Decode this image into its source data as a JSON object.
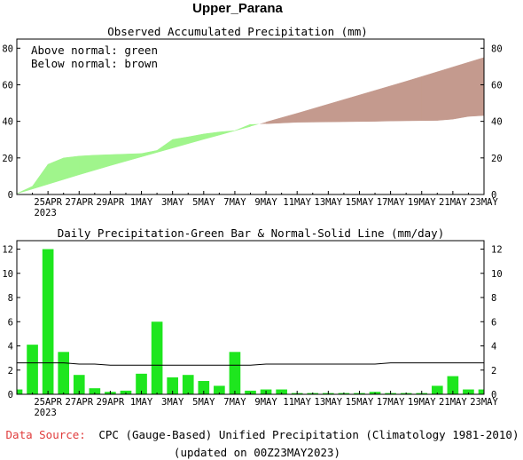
{
  "title": "Upper_Parana",
  "chart_data": [
    {
      "type": "area",
      "title": "Observed Accumulated Precipitation (mm)",
      "annotations": [
        "Above normal: green",
        "Below normal: brown"
      ],
      "legend_position": "top-left",
      "ylim": [
        0,
        85
      ],
      "yticks": [
        0,
        20,
        40,
        60,
        80
      ],
      "x_tick_labels": [
        "25APR",
        "27APR",
        "29APR",
        "1MAY",
        "3MAY",
        "5MAY",
        "7MAY",
        "9MAY",
        "11MAY",
        "13MAY",
        "15MAY",
        "17MAY",
        "19MAY",
        "21MAY",
        "23MAY"
      ],
      "x_year_label": "2023",
      "x_dates": [
        "23APR",
        "24APR",
        "25APR",
        "26APR",
        "27APR",
        "28APR",
        "29APR",
        "30APR",
        "1MAY",
        "2MAY",
        "3MAY",
        "4MAY",
        "5MAY",
        "6MAY",
        "7MAY",
        "8MAY",
        "9MAY",
        "10MAY",
        "11MAY",
        "12MAY",
        "13MAY",
        "14MAY",
        "15MAY",
        "16MAY",
        "17MAY",
        "18MAY",
        "19MAY",
        "20MAY",
        "21MAY",
        "22MAY",
        "23MAY"
      ],
      "series": [
        {
          "name": "observed",
          "values": [
            0.5,
            4.5,
            16.5,
            20,
            21,
            21.5,
            21.8,
            22.1,
            22.4,
            24.1,
            30.1,
            31.5,
            33.1,
            34.2,
            34.9,
            38.4,
            38.7,
            39.1,
            39.5,
            39.6,
            39.7,
            39.8,
            39.9,
            40,
            40.2,
            40.3,
            40.4,
            40.5,
            41.2,
            42.7,
            43.2
          ]
        },
        {
          "name": "normal",
          "values": [
            0.5,
            3,
            5.6,
            8.2,
            10.8,
            13.3,
            15.8,
            18.2,
            20.6,
            23,
            25.4,
            27.8,
            30.2,
            32.5,
            34.9,
            37.2,
            39.6,
            42,
            44.4,
            46.9,
            49.4,
            51.9,
            54.4,
            56.9,
            59.4,
            61.9,
            64.5,
            67.1,
            69.7,
            72.3,
            74.9
          ]
        }
      ],
      "colors": {
        "above": "#a0f58c",
        "below": "#c49a8e"
      }
    },
    {
      "type": "bar",
      "title": "Daily Precipitation-Green Bar & Normal-Solid Line (mm/day)",
      "ylim": [
        0,
        12.7
      ],
      "yticks": [
        0,
        2,
        4,
        6,
        8,
        10,
        12
      ],
      "x_tick_labels": [
        "25APR",
        "27APR",
        "29APR",
        "1MAY",
        "3MAY",
        "5MAY",
        "7MAY",
        "9MAY",
        "11MAY",
        "13MAY",
        "15MAY",
        "17MAY",
        "19MAY",
        "21MAY",
        "23MAY"
      ],
      "x_year_label": "2023",
      "categories": [
        "23APR",
        "24APR",
        "25APR",
        "26APR",
        "27APR",
        "28APR",
        "29APR",
        "30APR",
        "1MAY",
        "2MAY",
        "3MAY",
        "4MAY",
        "5MAY",
        "6MAY",
        "7MAY",
        "8MAY",
        "9MAY",
        "10MAY",
        "11MAY",
        "12MAY",
        "13MAY",
        "14MAY",
        "15MAY",
        "16MAY",
        "17MAY",
        "18MAY",
        "19MAY",
        "20MAY",
        "21MAY",
        "22MAY",
        "23MAY"
      ],
      "series": [
        {
          "name": "daily",
          "values": [
            0.4,
            4.1,
            12,
            3.5,
            1.6,
            0.5,
            0.2,
            0.3,
            1.7,
            6,
            1.4,
            1.6,
            1.1,
            0.7,
            3.5,
            0.3,
            0.4,
            0.4,
            0.1,
            0.1,
            0.1,
            0.1,
            0.1,
            0.2,
            0.1,
            0.1,
            0.1,
            0.7,
            1.5,
            0.4,
            0.4
          ]
        },
        {
          "name": "normal",
          "values": [
            2.6,
            2.6,
            2.6,
            2.6,
            2.5,
            2.5,
            2.4,
            2.4,
            2.4,
            2.4,
            2.4,
            2.4,
            2.4,
            2.4,
            2.4,
            2.4,
            2.5,
            2.5,
            2.5,
            2.5,
            2.5,
            2.5,
            2.5,
            2.5,
            2.6,
            2.6,
            2.6,
            2.6,
            2.6,
            2.6,
            2.6
          ]
        }
      ],
      "colors": {
        "bar": "#1ee61e",
        "line": "#000000"
      }
    }
  ],
  "footer": {
    "source_label": "Data Source:",
    "source_text": "CPC (Gauge-Based) Unified Precipitation (Climatology 1981-2010)",
    "updated": "(updated on 00Z23MAY2023)",
    "source_label_color": "#e03c3c"
  }
}
